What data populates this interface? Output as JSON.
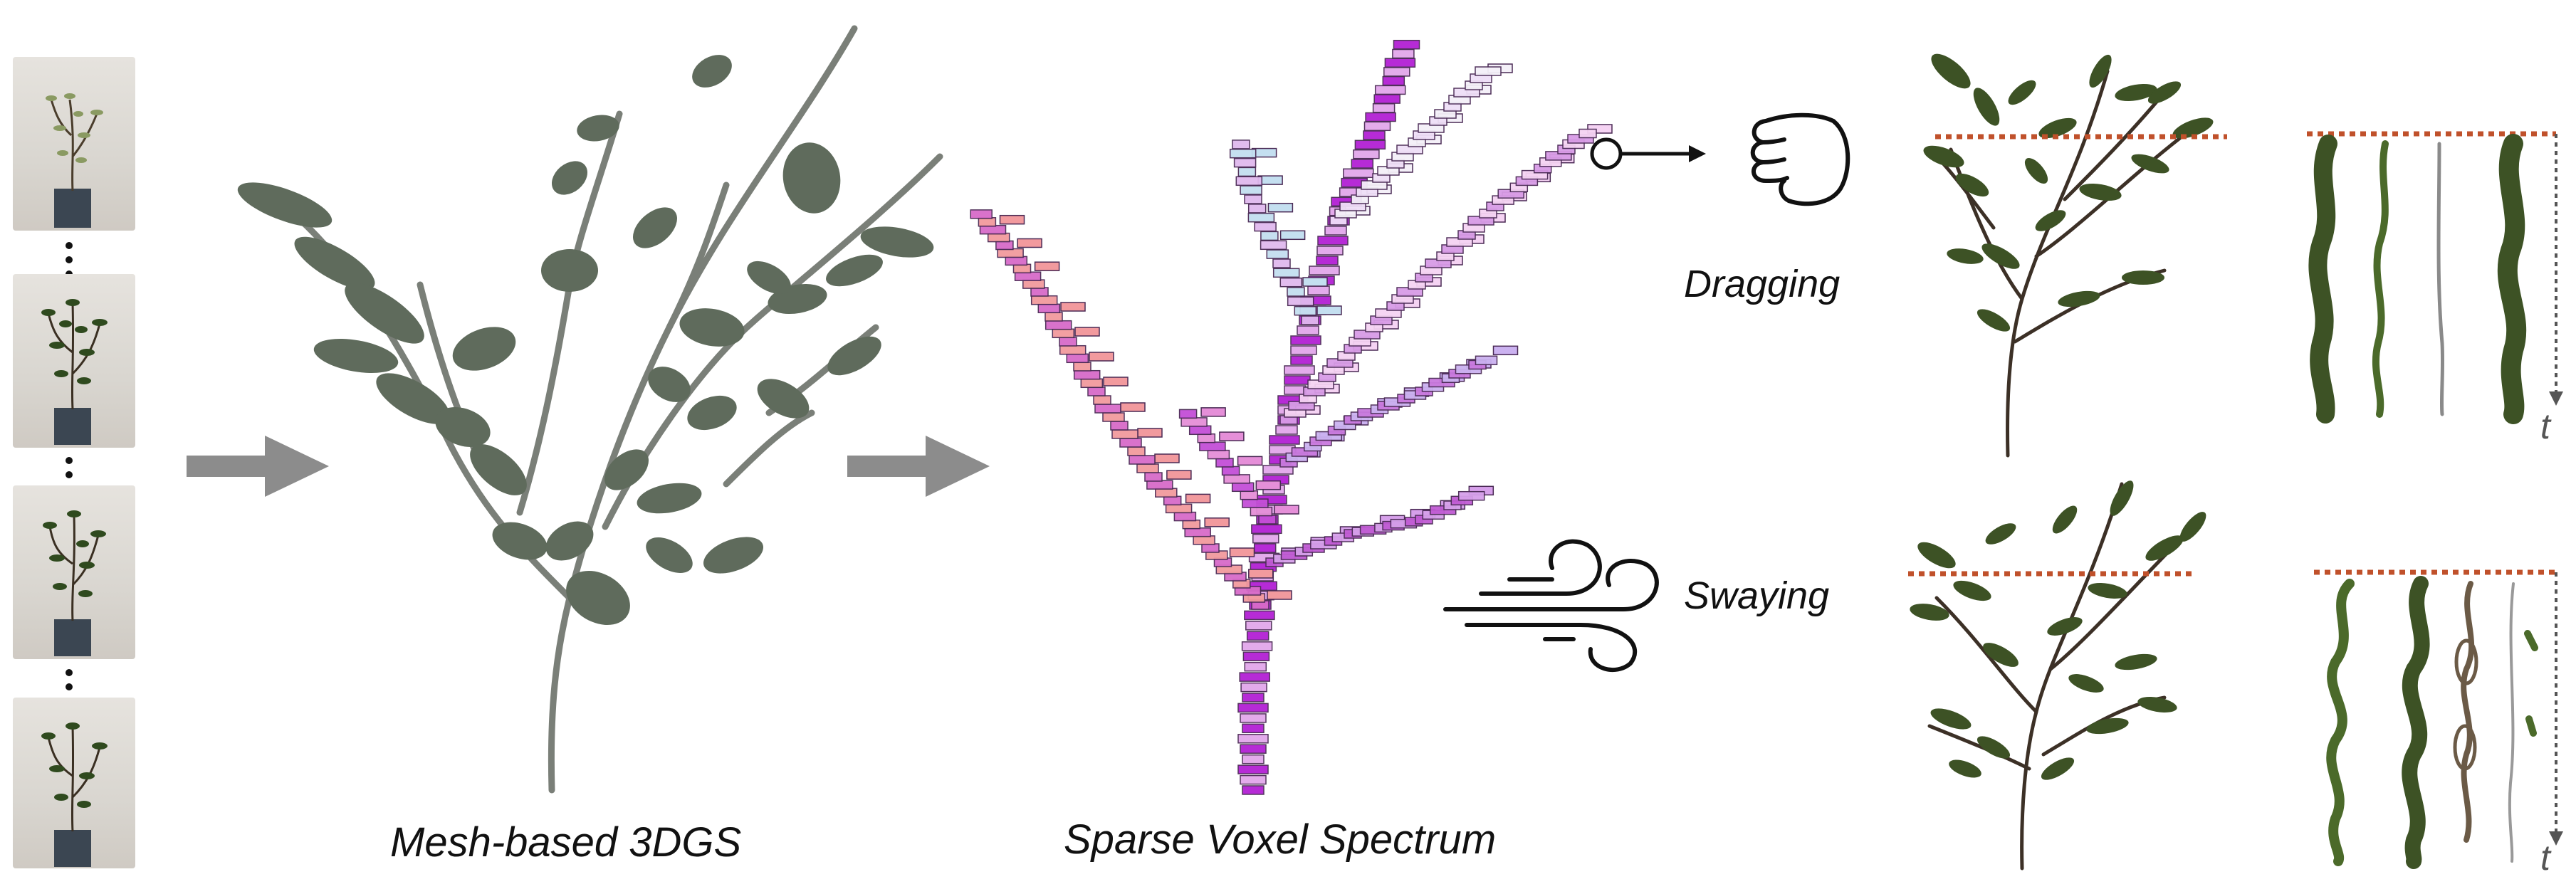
{
  "captions": {
    "mesh": "Mesh-based 3DGS",
    "voxel": "Sparse Voxel Spectrum"
  },
  "interactions": {
    "dragging": "Dragging",
    "swaying": "Swaying"
  },
  "time_axis_label": "t",
  "colors": {
    "arrow": "#8c8c8c",
    "leaf_mesh": "#5f6b5c",
    "leaf_real": "#3d5225",
    "voxel_pink": "#f2a3c8",
    "voxel_magenta": "#c23ad8",
    "voxel_lavender": "#d7c6f5",
    "dotted_line": "#c0512b",
    "time_axis": "#555555"
  },
  "icons": [
    "fist-icon",
    "wind-icon",
    "drag-handle-icon"
  ]
}
